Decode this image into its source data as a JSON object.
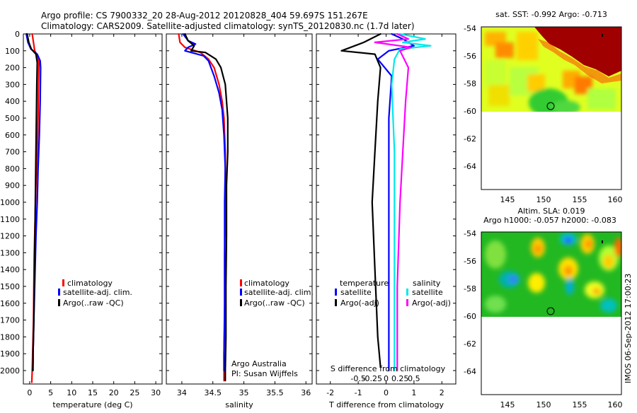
{
  "header": {
    "line1": "Argo profile: CS 7900332_20 28-Aug-2012 20120828_404 59.697S 151.267E",
    "line2": "Climatology: CARS2009. Satellite-adjusted climatology: synTS_20120830.nc (1.7d later)"
  },
  "chart_data": [
    {
      "type": "line",
      "name": "temperature-panel",
      "xlabel": "temperature (deg C)",
      "ylabel": "",
      "xlim": [
        -1.5,
        31.5
      ],
      "ylim": [
        2080,
        0
      ],
      "xticks": [
        0,
        5,
        10,
        15,
        20,
        25,
        30
      ],
      "yticks": [
        0,
        100,
        200,
        300,
        400,
        500,
        600,
        700,
        800,
        900,
        1000,
        1100,
        1200,
        1300,
        1400,
        1500,
        1600,
        1700,
        1800,
        1900,
        2000
      ],
      "legend": [
        "climatology",
        "satellite-adj. clim.",
        "Argo(..raw -QC)"
      ],
      "series": [
        {
          "name": "climatology",
          "color": "#ff0000",
          "x": [
            0.6,
            0.9,
            1.2,
            1.9,
            2.2,
            2.1,
            2.0,
            1.8,
            1.5,
            1.3,
            1.1,
            1.0,
            0.9,
            0.8,
            0.7,
            0.6,
            0.5
          ],
          "y": [
            0,
            50,
            100,
            130,
            170,
            300,
            500,
            700,
            900,
            1100,
            1300,
            1500,
            1700,
            1800,
            1900,
            2000,
            2070
          ]
        },
        {
          "name": "satellite-adj. clim.",
          "color": "#0000ff",
          "x": [
            -0.8,
            -0.4,
            0.3,
            1.8,
            2.5,
            2.6,
            2.5,
            2.3,
            2.0,
            1.8,
            1.5,
            1.3,
            1.1,
            1.0,
            0.9,
            0.8,
            0.8
          ],
          "y": [
            0,
            50,
            90,
            120,
            160,
            200,
            400,
            600,
            800,
            1000,
            1200,
            1400,
            1600,
            1700,
            1800,
            1900,
            2000
          ]
        },
        {
          "name": "Argo(..raw -QC)",
          "color": "#000000",
          "x": [
            -0.6,
            -0.2,
            0.4,
            1.5,
            1.8,
            1.7,
            1.6,
            1.5,
            1.4,
            1.3,
            1.2,
            1.1,
            1.0,
            0.9,
            0.8,
            0.8,
            0.7
          ],
          "y": [
            0,
            50,
            90,
            120,
            170,
            300,
            500,
            700,
            900,
            1100,
            1300,
            1500,
            1700,
            1800,
            1900,
            1950,
            2000
          ]
        }
      ]
    },
    {
      "type": "line",
      "name": "salinity-panel",
      "xlabel": "salinity",
      "ylabel": "",
      "xlim": [
        33.75,
        36.1
      ],
      "ylim": [
        2080,
        0
      ],
      "xticks": [
        34,
        34.5,
        35,
        35.5,
        36
      ],
      "legend": [
        "climatology",
        "satellite-adj. clim.",
        "Argo(..raw -QC)"
      ],
      "annotation": [
        "Argo Australia",
        "PI: Susan Wijffels"
      ],
      "series": [
        {
          "name": "climatology",
          "color": "#ff0000",
          "x": [
            33.95,
            33.97,
            34.05,
            34.3,
            34.43,
            34.52,
            34.6,
            34.65,
            34.68,
            34.7,
            34.7,
            34.7,
            34.69,
            34.69,
            34.69,
            34.68,
            34.68
          ],
          "y": [
            0,
            50,
            80,
            110,
            150,
            200,
            300,
            400,
            500,
            700,
            900,
            1100,
            1300,
            1500,
            1700,
            1900,
            2060
          ]
        },
        {
          "name": "satellite-adj. clim.",
          "color": "#0000ff",
          "x": [
            34.02,
            34.1,
            34.22,
            34.1,
            34.05,
            34.35,
            34.43,
            34.52,
            34.6,
            34.65,
            34.68,
            34.7,
            34.69,
            34.69,
            34.69,
            34.68,
            34.68
          ],
          "y": [
            0,
            40,
            60,
            80,
            100,
            130,
            160,
            250,
            350,
            450,
            600,
            800,
            1000,
            1300,
            1600,
            1900,
            2000
          ]
        },
        {
          "name": "Argo(..raw -QC)",
          "color": "#000000",
          "x": [
            34.05,
            34.1,
            34.2,
            34.15,
            34.38,
            34.55,
            34.63,
            34.7,
            34.74,
            34.74,
            34.72,
            34.72,
            34.71,
            34.71,
            34.7,
            34.7
          ],
          "y": [
            0,
            40,
            70,
            100,
            110,
            150,
            200,
            300,
            500,
            700,
            900,
            1200,
            1500,
            1800,
            2000,
            2060
          ]
        }
      ]
    },
    {
      "type": "line",
      "name": "difference-panel",
      "xlabel": "T difference from climatology",
      "top_axis_label": "S difference from climatology",
      "xlim": [
        -2.5,
        2.5
      ],
      "ylim": [
        2080,
        0
      ],
      "xticks": [
        -2,
        -1,
        0,
        1,
        2
      ],
      "xtick_labels": [
        "-2",
        "-1",
        "0",
        "1",
        "2"
      ],
      "s_ticks": [
        -0.5,
        -0.25,
        0,
        0.25,
        0.5
      ],
      "s_tick_labels": [
        "-0.5",
        "-0.25",
        "0",
        "0.25",
        "0.5"
      ],
      "legend": {
        "temperature_header": "temperature",
        "salinity_header": "salinity",
        "items": [
          "satellite",
          "Argo(-adj)",
          "satellite",
          "Argo(-adj)"
        ]
      },
      "series": [
        {
          "name": "temperature satellite",
          "color": "#0000ff",
          "x": [
            0.2,
            0.6,
            1.0,
            0.1,
            -0.3,
            0.2,
            0.1,
            0.1
          ],
          "y": [
            0,
            30,
            70,
            100,
            150,
            250,
            500,
            2000
          ]
        },
        {
          "name": "temperature Argo(-adj)",
          "color": "#000000",
          "x": [
            -0.2,
            -0.8,
            -1.6,
            -0.4,
            -0.2,
            -0.3,
            -0.4,
            -0.5,
            -0.4,
            -0.3,
            -0.2
          ],
          "y": [
            0,
            50,
            100,
            120,
            200,
            400,
            700,
            1000,
            1400,
            1800,
            1980
          ]
        },
        {
          "name": "salinity satellite",
          "color": "#00e8e8",
          "x": [
            0.5,
            1.4,
            0.6,
            1.6,
            0.5,
            0.3,
            0.2,
            0.3,
            0.3,
            0.3,
            0.3
          ],
          "y": [
            0,
            30,
            50,
            70,
            90,
            150,
            300,
            700,
            1200,
            1700,
            2000
          ]
        },
        {
          "name": "salinity Argo(-adj)",
          "color": "#ff00ff",
          "x": [
            0.4,
            0.8,
            -0.4,
            0.9,
            0.5,
            0.8,
            0.7,
            0.6,
            0.5,
            0.4,
            0.4
          ],
          "y": [
            0,
            30,
            50,
            80,
            100,
            200,
            400,
            700,
            1000,
            1500,
            2000
          ]
        }
      ]
    }
  ],
  "maps": {
    "sst": {
      "title": "sat. SST: -0.992  Argo: -0.713",
      "yticks": [
        "-54",
        "-56",
        "-58",
        "-60",
        "-62",
        "-64"
      ],
      "xticks": [
        "145",
        "150",
        "155",
        "160"
      ]
    },
    "sla": {
      "title_line1": "Altim. SLA: 0.019",
      "title_line2": "Argo h1000: -0.057  h2000: -0.083",
      "yticks": [
        "-54",
        "-56",
        "-58",
        "-60",
        "-62",
        "-64"
      ],
      "xticks": [
        "145",
        "150",
        "155",
        "160"
      ]
    }
  },
  "footer": {
    "stamp": "IMOS 06-Sep-2012 17:00:23"
  },
  "colors": {
    "climatology": "#ff0000",
    "satellite": "#0000ff",
    "argo": "#000000",
    "salinity_satellite": "#00e8e8",
    "salinity_argo": "#ff00ff"
  }
}
